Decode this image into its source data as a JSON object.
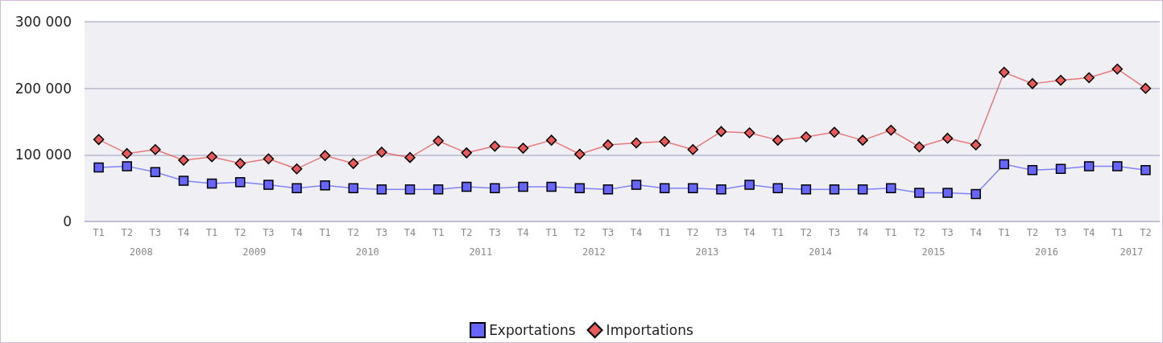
{
  "chart_data": {
    "type": "line",
    "categories": [
      "T1",
      "T2",
      "T3",
      "T4",
      "T1",
      "T2",
      "T3",
      "T4",
      "T1",
      "T2",
      "T3",
      "T4",
      "T1",
      "T2",
      "T3",
      "T4",
      "T1",
      "T2",
      "T3",
      "T4",
      "T1",
      "T2",
      "T3",
      "T4",
      "T1",
      "T2",
      "T3",
      "T4",
      "T1",
      "T2",
      "T3",
      "T4",
      "T1",
      "T2",
      "T3",
      "T4",
      "T1",
      "T2"
    ],
    "series": [
      {
        "name": "Exportations",
        "color": "#6666ff",
        "marker": "square",
        "values": [
          81000,
          83000,
          74000,
          61000,
          57000,
          59000,
          55000,
          50000,
          54000,
          50000,
          48000,
          48000,
          48000,
          52000,
          50000,
          52000,
          52000,
          50000,
          48000,
          55000,
          50000,
          50000,
          48000,
          55000,
          50000,
          48000,
          48000,
          48000,
          50000,
          43000,
          43000,
          41000,
          86000,
          77000,
          79000,
          83000,
          83000,
          77000
        ]
      },
      {
        "name": "Importations",
        "color": "#e85a5a",
        "marker": "diamond",
        "values": [
          123000,
          102000,
          108000,
          92000,
          97000,
          87000,
          94000,
          79000,
          99000,
          87000,
          104000,
          96000,
          121000,
          103000,
          113000,
          110000,
          122000,
          101000,
          115000,
          118000,
          120000,
          108000,
          135000,
          133000,
          122000,
          127000,
          134000,
          122000,
          137000,
          112000,
          125000,
          115000,
          224000,
          207000,
          212000,
          216000,
          229000,
          200000
        ]
      }
    ],
    "ylim": [
      0,
      300000
    ],
    "yticks": [
      {
        "value": 0,
        "label": "0"
      },
      {
        "value": 100000,
        "label": "100 000"
      },
      {
        "value": 200000,
        "label": "200 000"
      },
      {
        "value": 300000,
        "label": "300 000"
      }
    ],
    "grid": "y",
    "legend": "bottom",
    "annotations": [
      "2008",
      "2009",
      "2010",
      "2011",
      "2012",
      "2013",
      "2014",
      "2015",
      "2016",
      "2017"
    ]
  }
}
